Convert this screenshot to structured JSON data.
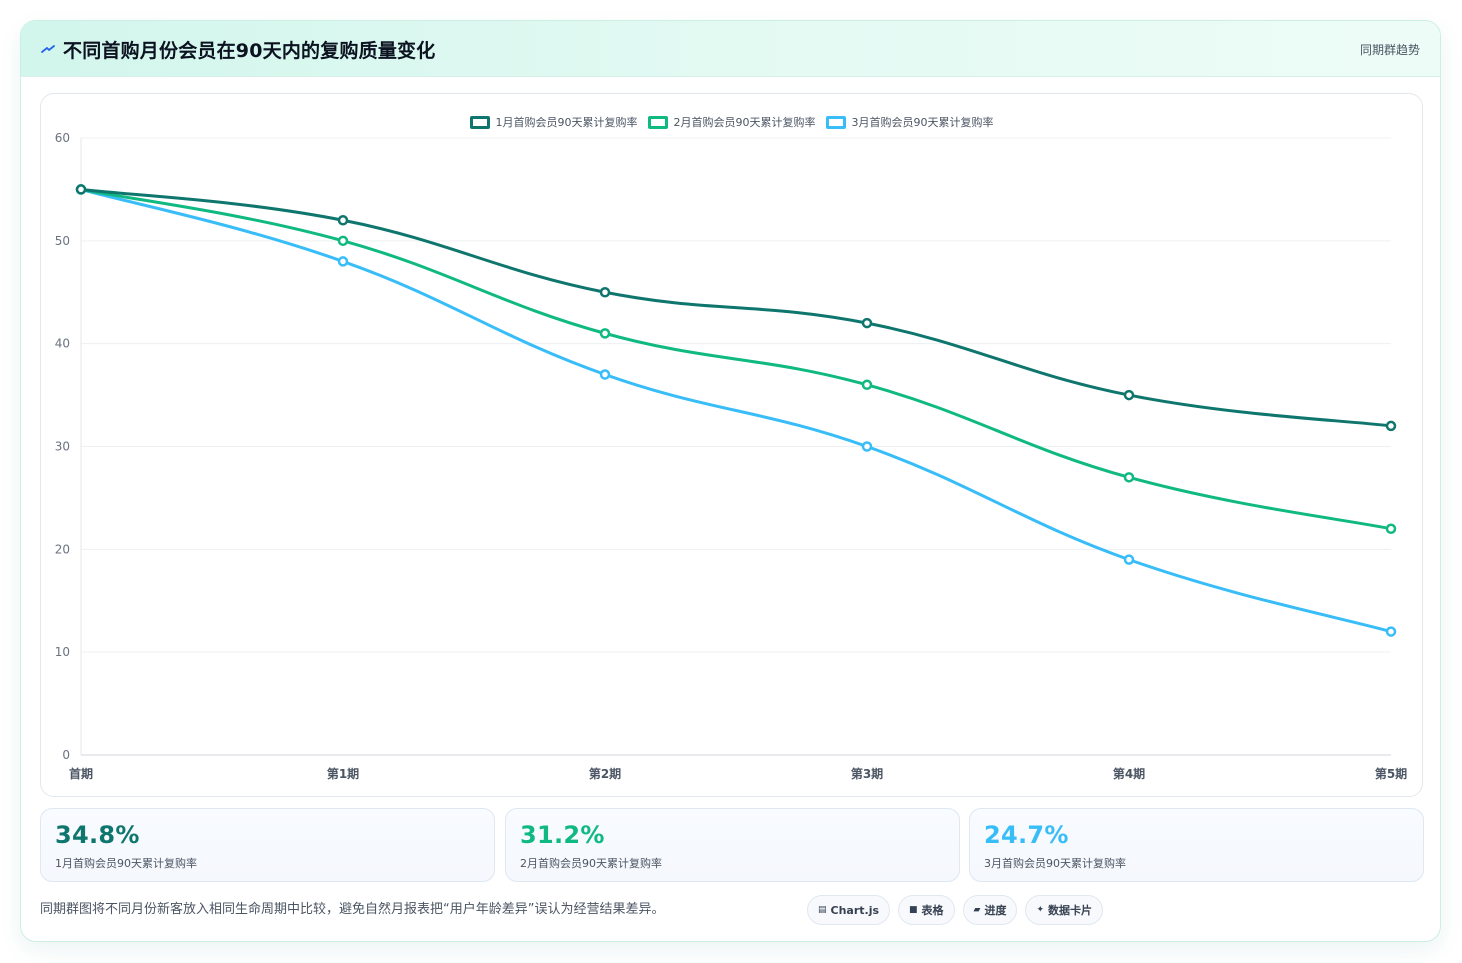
{
  "header": {
    "title": "不同首购月份会员在90天内的复购质量变化",
    "tag": "同期群趋势"
  },
  "chart_data": {
    "type": "line",
    "title": "",
    "xlabel": "",
    "ylabel": "",
    "categories": [
      "首期",
      "第1期",
      "第2期",
      "第3期",
      "第4期",
      "第5期"
    ],
    "ylim": [
      0,
      60
    ],
    "yticks": [
      0,
      10,
      20,
      30,
      40,
      50,
      60
    ],
    "grid": true,
    "legend_position": "top",
    "series": [
      {
        "name": "1月首购会员90天累计复购率",
        "color": "#0f766e",
        "values": [
          55,
          52,
          45,
          42,
          35,
          32
        ]
      },
      {
        "name": "2月首购会员90天累计复购率",
        "color": "#10b981",
        "values": [
          55,
          50,
          41,
          36,
          27,
          22
        ]
      },
      {
        "name": "3月首购会员90天累计复购率",
        "color": "#38bdf8",
        "values": [
          55,
          48,
          37,
          30,
          19,
          12
        ]
      }
    ]
  },
  "stats": [
    {
      "value": "34.8%",
      "label": "1月首购会员90天累计复购率",
      "color": "#0f766e"
    },
    {
      "value": "31.2%",
      "label": "2月首购会员90天累计复购率",
      "color": "#10b981"
    },
    {
      "value": "24.7%",
      "label": "3月首购会员90天累计复购率",
      "color": "#38bdf8"
    }
  ],
  "footer": {
    "note": "同期群图将不同月份新客放入相同生命周期中比较，避免自然月报表把“用户年龄差异”误认为经营结果差异。",
    "chips": [
      {
        "icon": "chart-icon",
        "glyph": "▤",
        "label": "Chart.js"
      },
      {
        "icon": "table-icon",
        "glyph": "■",
        "label": "表格"
      },
      {
        "icon": "progress-icon",
        "glyph": "▰",
        "label": "进度"
      },
      {
        "icon": "card-icon",
        "glyph": "✦",
        "label": "数据卡片"
      }
    ]
  }
}
